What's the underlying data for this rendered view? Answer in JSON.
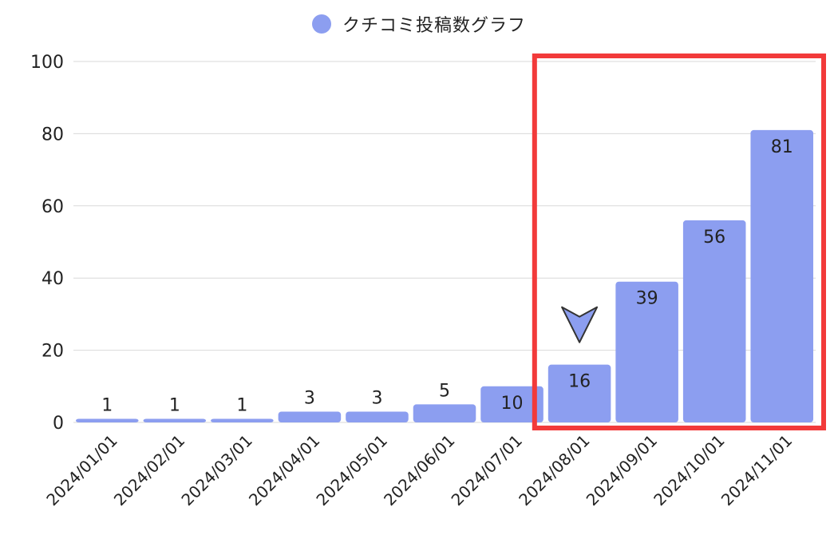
{
  "chart_data": {
    "type": "bar",
    "categories": [
      "2024/01/01",
      "2024/02/01",
      "2024/03/01",
      "2024/04/01",
      "2024/05/01",
      "2024/06/01",
      "2024/07/01",
      "2024/08/01",
      "2024/09/01",
      "2024/10/01",
      "2024/11/01"
    ],
    "series": [
      {
        "name": "クチコミ投稿数グラフ",
        "values": [
          1,
          1,
          1,
          3,
          3,
          5,
          10,
          16,
          39,
          56,
          81
        ],
        "color": "#8c9ef0"
      }
    ],
    "data_labels": [
      "1",
      "1",
      "1",
      "3",
      "3",
      "5",
      "10",
      "16",
      "39",
      "56",
      "81"
    ],
    "ylim": [
      0,
      100
    ],
    "y_ticks": [
      0,
      20,
      40,
      60,
      80,
      100
    ],
    "y_tick_labels": [
      "0",
      "20",
      "40",
      "60",
      "80",
      "100"
    ],
    "grid": true,
    "legend": {
      "position": "top-center",
      "label": "クチコミ投稿数グラフ"
    },
    "highlight": {
      "from_category": "2024/08/01",
      "to_category": "2024/11/01",
      "color": "#f23a3a"
    },
    "marker": {
      "category": "2024/08/01",
      "shape": "down-arrow",
      "color": "#8c9ef0"
    }
  }
}
